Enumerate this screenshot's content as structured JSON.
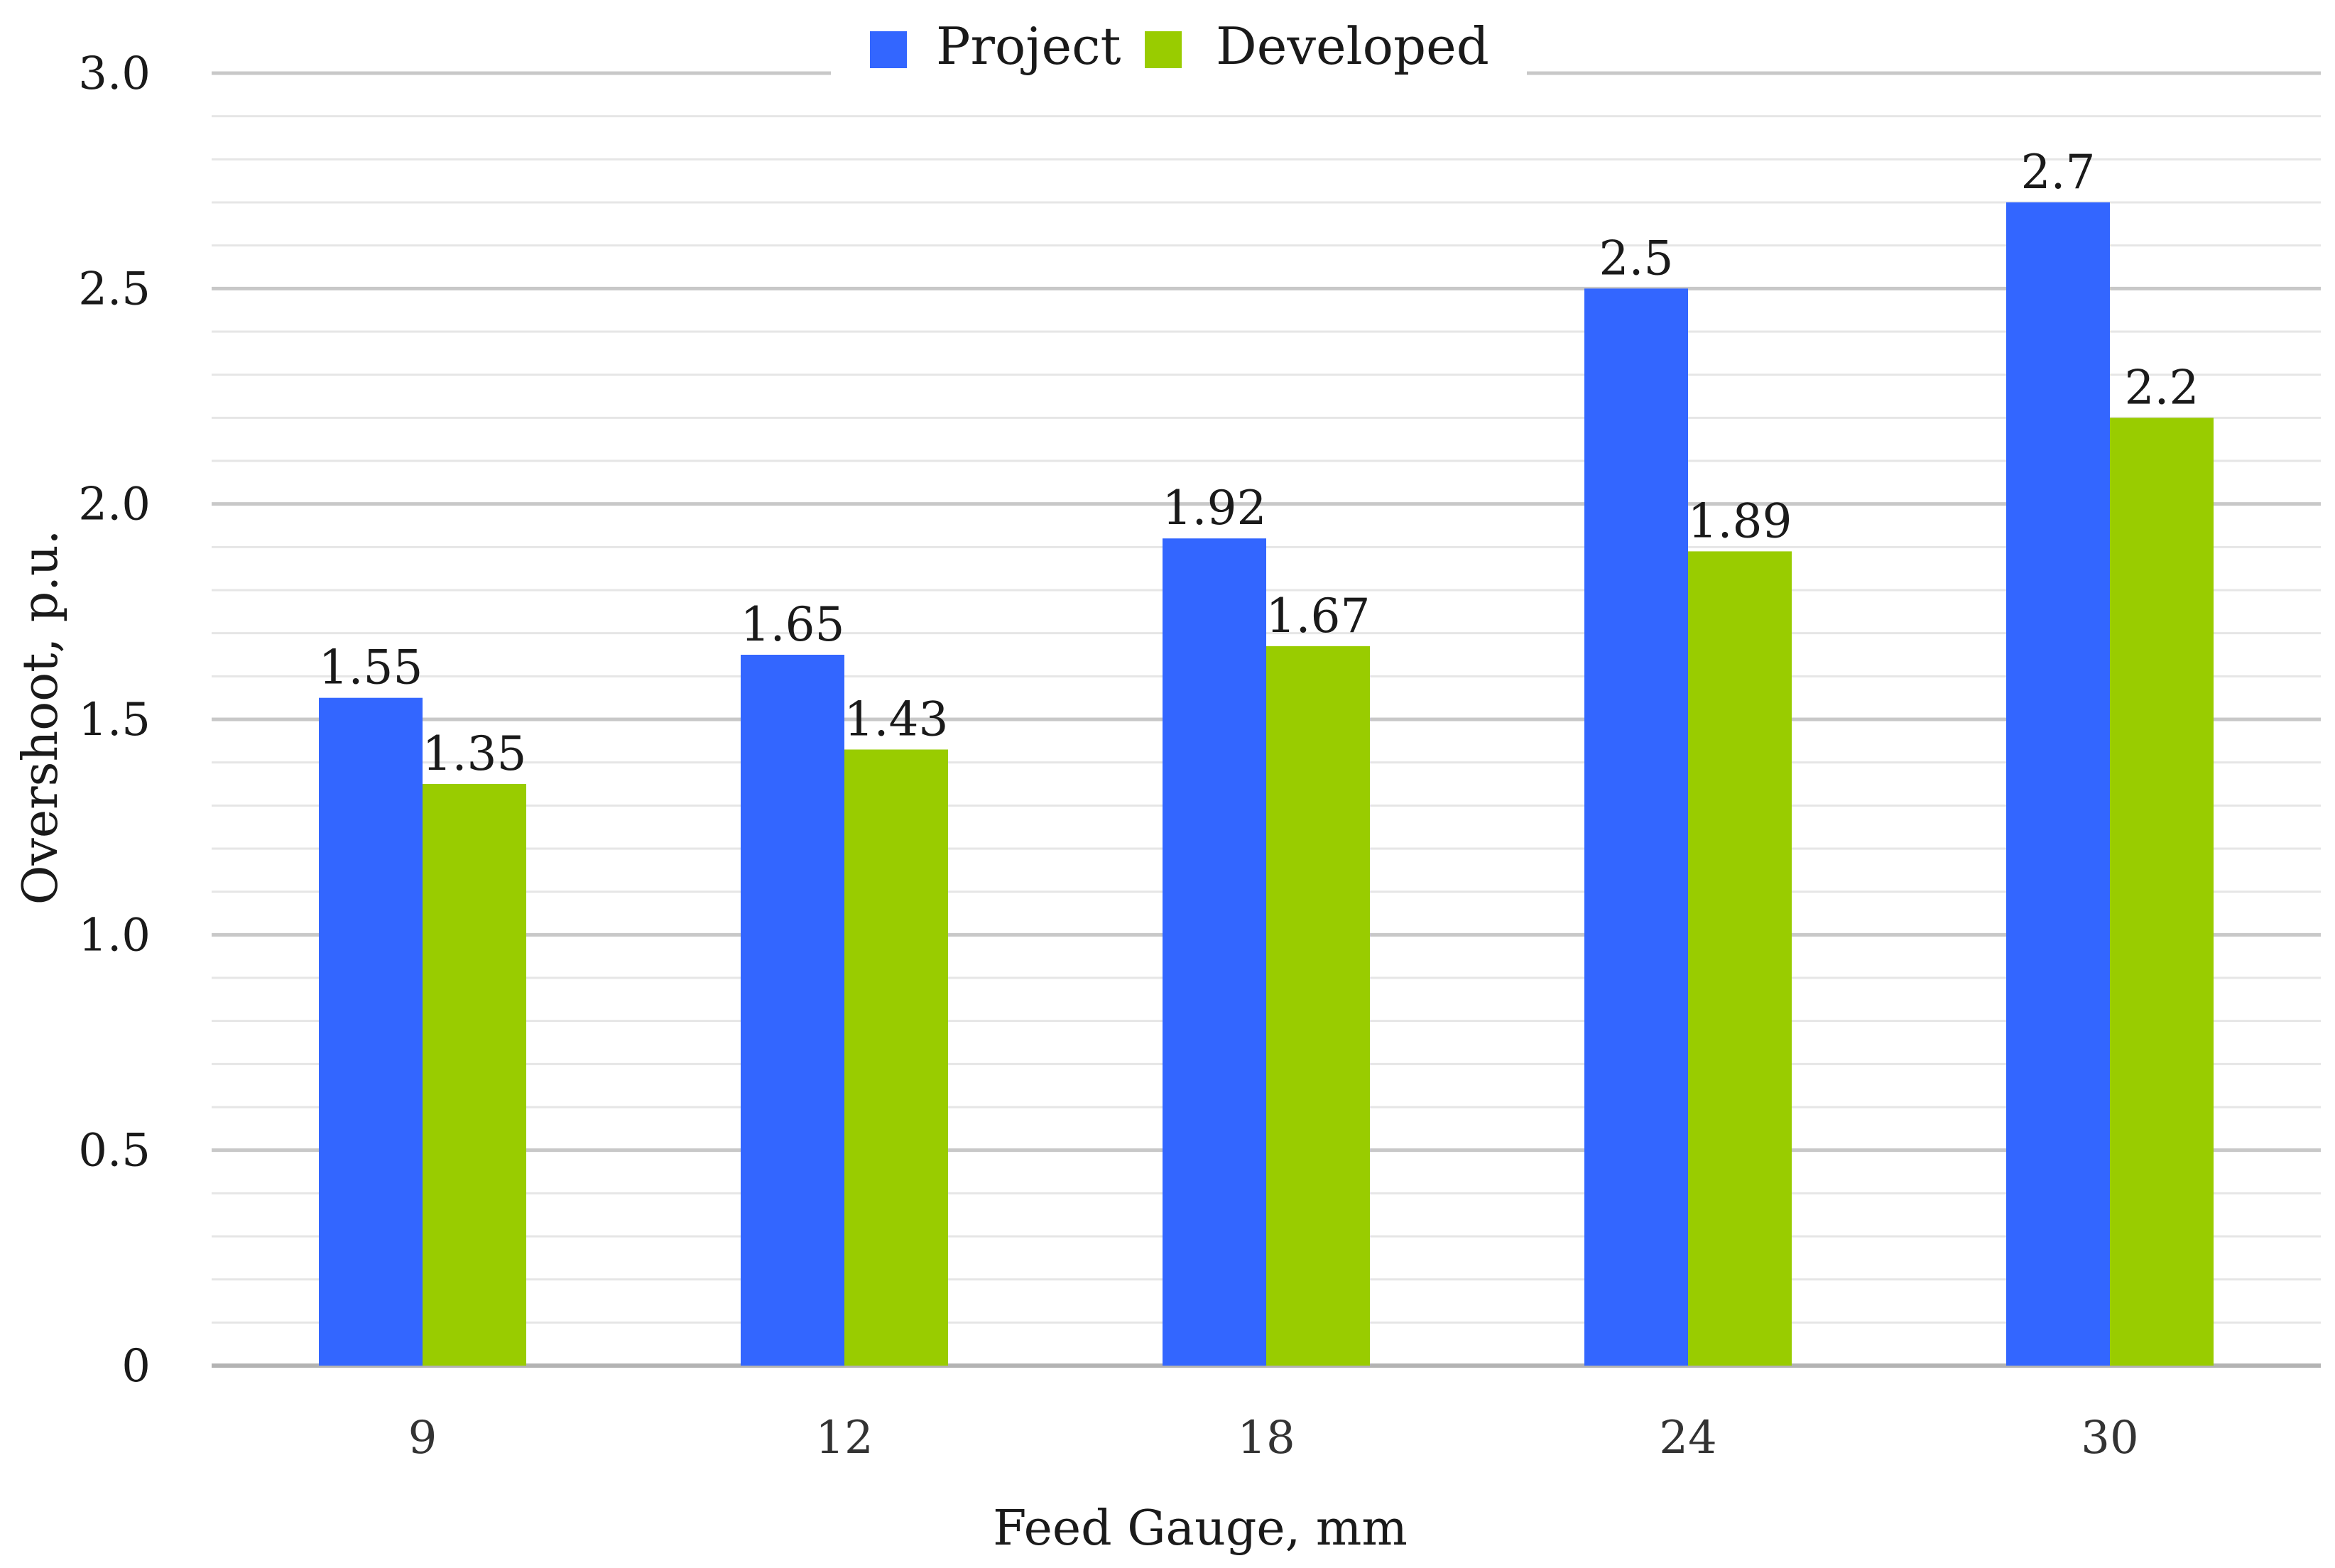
{
  "chart_data": {
    "type": "bar",
    "title": "",
    "xlabel": "Feed Gauge, mm",
    "ylabel": "Overshoot, p.u.",
    "categories": [
      "9",
      "12",
      "18",
      "24",
      "30"
    ],
    "series": [
      {
        "name": "Project",
        "color": "#3366ff",
        "values": [
          1.55,
          1.65,
          1.92,
          2.5,
          2.7
        ],
        "labels": [
          "1.55",
          "1.65",
          "1.92",
          "2.5",
          "2.7"
        ]
      },
      {
        "name": "Developed",
        "color": "#99cc00",
        "values": [
          1.35,
          1.43,
          1.67,
          1.89,
          2.2
        ],
        "labels": [
          "1.35",
          "1.43",
          "1.67",
          "1.89",
          "2.2"
        ]
      }
    ],
    "ylim": [
      0,
      3.0
    ],
    "yticks": [
      0,
      0.5,
      1.0,
      1.5,
      2.0,
      2.5,
      3.0
    ],
    "ytick_labels": [
      "0",
      "0.5",
      "1.0",
      "1.5",
      "2.0",
      "2.5",
      "3.0"
    ],
    "grid": true,
    "legend_position": "top-center"
  }
}
